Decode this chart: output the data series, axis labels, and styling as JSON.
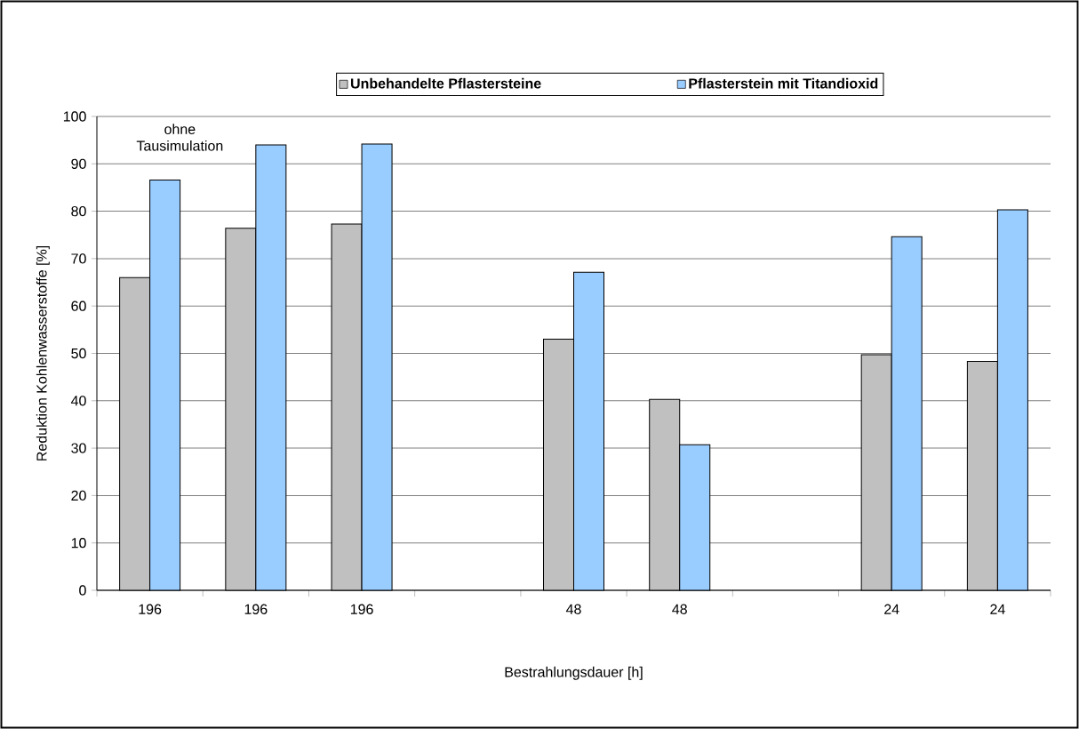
{
  "chart_data": {
    "type": "bar",
    "xlabel": "Bestrahlungsdauer [h]",
    "ylabel": "Reduktion Kohlenwasserstoffe [%]",
    "categories": [
      "196",
      "196",
      "196",
      null,
      "48",
      "48",
      null,
      "24",
      "24"
    ],
    "series": [
      {
        "name": "Unbehandelte Pflastersteine",
        "color": "#c0c0c0",
        "values": [
          66,
          76.4,
          77.3,
          null,
          53,
          40.3,
          null,
          49.7,
          48.3
        ]
      },
      {
        "name": "Pflasterstein mit Titandioxid",
        "color": "#99ccff",
        "values": [
          86.6,
          94,
          94.2,
          null,
          67.1,
          30.7,
          null,
          74.6,
          80.3
        ]
      }
    ],
    "ylim": [
      0,
      100
    ],
    "yticks": [
      0,
      10,
      20,
      30,
      40,
      50,
      60,
      70,
      80,
      90,
      100
    ],
    "grid": "y",
    "legend": "top",
    "annotations": [
      "ohne Tausimulation"
    ]
  }
}
